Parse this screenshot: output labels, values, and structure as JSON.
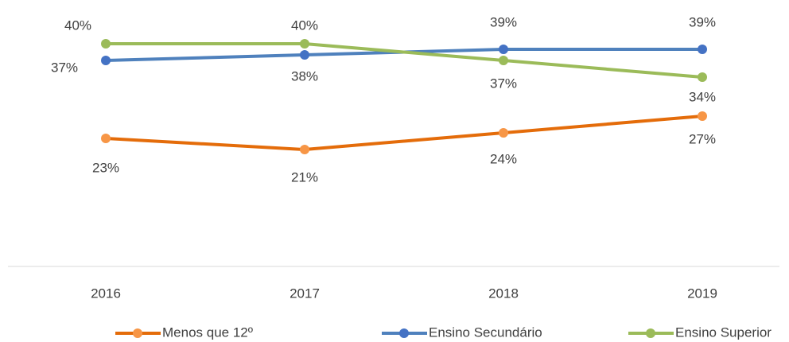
{
  "chart_data": {
    "type": "line",
    "categories": [
      "2016",
      "2017",
      "2018",
      "2019"
    ],
    "series": [
      {
        "name": "Menos que 12º",
        "color": "#E46C0A",
        "marker_color": "#F79646",
        "values": [
          23,
          21,
          24,
          27
        ],
        "value_labels": [
          "23%",
          "21%",
          "24%",
          "27%"
        ]
      },
      {
        "name": "Ensino Secundário",
        "color": "#4F81BD",
        "marker_color": "#4472C4",
        "values": [
          37,
          38,
          39,
          39
        ],
        "value_labels": [
          "37%",
          "38%",
          "39%",
          "39%"
        ]
      },
      {
        "name": "Ensino Superior",
        "color": "#9BBB59",
        "marker_color": "#9BBB59",
        "values": [
          40,
          40,
          37,
          34
        ],
        "value_labels": [
          "40%",
          "40%",
          "37%",
          "34%"
        ]
      }
    ],
    "ylim": [
      0,
      45
    ],
    "grid": false,
    "legend": "bottom"
  }
}
